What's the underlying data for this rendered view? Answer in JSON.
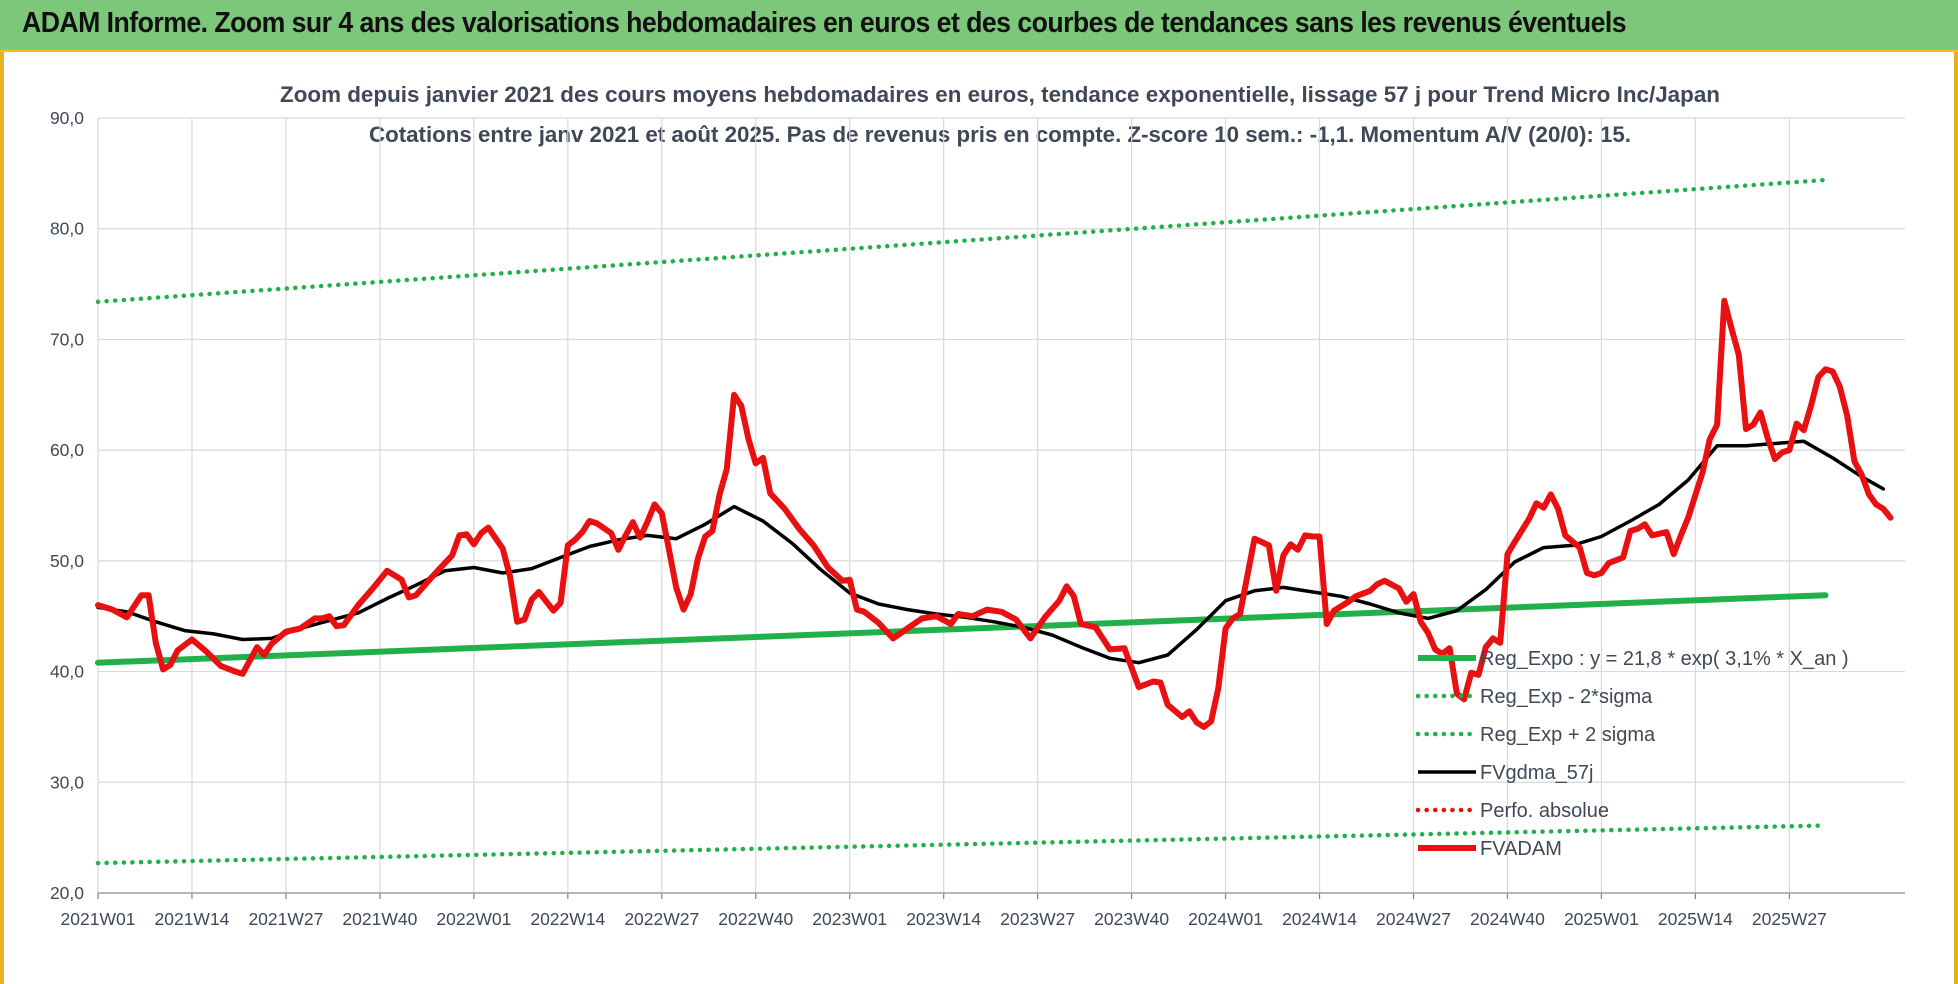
{
  "banner": {
    "title": "ADAM Informe. Zoom sur 4 ans des valorisations hebdomadaires en euros et des courbes de tendances sans les revenus éventuels"
  },
  "colors": {
    "banner_bg": "#7dc77a",
    "green": "#22b04b",
    "black": "#000000",
    "red": "#e81010",
    "grid": "#d9d9d9",
    "text": "#404858"
  },
  "chart_data": {
    "type": "line",
    "title": "Zoom depuis janvier 2021 des cours moyens hebdomadaires en euros, tendance exponentielle, lissage 57 j pour Trend Micro Inc/Japan",
    "subtitle": "Cotations entre janv 2021 et août 2025.  Pas de revenus pris en compte. Z-score 10 sem.: -1,1. Momentum A/V (20/0): 15.",
    "xlabel": "",
    "ylabel": "",
    "ylim": [
      20,
      90
    ],
    "y_ticks": [
      "20,0",
      "30,0",
      "40,0",
      "50,0",
      "60,0",
      "70,0",
      "80,0",
      "90,0"
    ],
    "x_ticks": [
      "2021W01",
      "2021W14",
      "2021W27",
      "2021W40",
      "2022W01",
      "2022W14",
      "2022W27",
      "2022W40",
      "2023W01",
      "2023W14",
      "2023W27",
      "2023W40",
      "2024W01",
      "2024W14",
      "2024W27",
      "2024W40",
      "2025W01",
      "2025W14",
      "2025W27"
    ],
    "x_tick_week_index": [
      0,
      13,
      26,
      39,
      52,
      65,
      78,
      91,
      104,
      117,
      130,
      143,
      156,
      169,
      182,
      195,
      208,
      221,
      234
    ],
    "x_range_weeks": [
      0,
      239
    ],
    "grid": "vertical and horizontal",
    "legend_placement": "lower-right inside plot",
    "series": [
      {
        "name": "Reg_Expo : y = 21,8 * exp( 3,1% *  X_an )",
        "style": "solid-thick",
        "color": "#22b04b",
        "points": [
          [
            0,
            40.8
          ],
          [
            239,
            46.9
          ]
        ]
      },
      {
        "name": "Reg_Exp - 2*sigma",
        "style": "dotted",
        "color": "#22b04b",
        "points": [
          [
            0,
            22.7
          ],
          [
            239,
            26.1
          ]
        ]
      },
      {
        "name": "Reg_Exp + 2 sigma",
        "style": "dotted",
        "color": "#22b04b",
        "points": [
          [
            0,
            73.4
          ],
          [
            239,
            84.4
          ]
        ]
      },
      {
        "name": "FVgdma_57j",
        "style": "solid",
        "color": "#000000",
        "points": [
          [
            0,
            45.8
          ],
          [
            4,
            45.4
          ],
          [
            8,
            44.5
          ],
          [
            12,
            43.7
          ],
          [
            16,
            43.4
          ],
          [
            20,
            42.9
          ],
          [
            24,
            43.0
          ],
          [
            28,
            43.9
          ],
          [
            32,
            44.6
          ],
          [
            36,
            45.3
          ],
          [
            40,
            46.6
          ],
          [
            44,
            47.8
          ],
          [
            48,
            49.1
          ],
          [
            52,
            49.4
          ],
          [
            56,
            48.9
          ],
          [
            60,
            49.3
          ],
          [
            64,
            50.3
          ],
          [
            68,
            51.3
          ],
          [
            72,
            51.9
          ],
          [
            76,
            52.3
          ],
          [
            80,
            52.0
          ],
          [
            84,
            53.3
          ],
          [
            88,
            54.9
          ],
          [
            92,
            53.6
          ],
          [
            96,
            51.6
          ],
          [
            100,
            49.2
          ],
          [
            104,
            47.1
          ],
          [
            108,
            46.1
          ],
          [
            112,
            45.6
          ],
          [
            116,
            45.2
          ],
          [
            120,
            44.9
          ],
          [
            124,
            44.5
          ],
          [
            128,
            44.0
          ],
          [
            132,
            43.3
          ],
          [
            136,
            42.2
          ],
          [
            140,
            41.2
          ],
          [
            144,
            40.8
          ],
          [
            148,
            41.5
          ],
          [
            152,
            43.8
          ],
          [
            156,
            46.4
          ],
          [
            160,
            47.3
          ],
          [
            164,
            47.6
          ],
          [
            168,
            47.2
          ],
          [
            172,
            46.8
          ],
          [
            176,
            46.1
          ],
          [
            180,
            45.3
          ],
          [
            184,
            44.8
          ],
          [
            188,
            45.5
          ],
          [
            192,
            47.4
          ],
          [
            196,
            49.9
          ],
          [
            200,
            51.2
          ],
          [
            204,
            51.4
          ],
          [
            208,
            52.2
          ],
          [
            212,
            53.6
          ],
          [
            216,
            55.1
          ],
          [
            220,
            57.3
          ],
          [
            224,
            60.4
          ],
          [
            228,
            60.4
          ],
          [
            232,
            60.6
          ],
          [
            236,
            60.8
          ],
          [
            240,
            59.3
          ],
          [
            244,
            57.6
          ],
          [
            247,
            56.5
          ]
        ]
      },
      {
        "name": "Perfo. absolue",
        "style": "dotted",
        "color": "#e81010",
        "points": []
      },
      {
        "name": "FVADAM",
        "style": "solid-thick",
        "color": "#e81010",
        "points": [
          [
            0,
            46.0
          ],
          [
            2,
            45.6
          ],
          [
            4,
            44.9
          ],
          [
            6,
            46.9
          ],
          [
            7,
            46.9
          ],
          [
            8,
            42.6
          ],
          [
            9,
            40.2
          ],
          [
            10,
            40.6
          ],
          [
            11,
            41.9
          ],
          [
            13,
            42.9
          ],
          [
            15,
            41.8
          ],
          [
            17,
            40.5
          ],
          [
            19,
            40.0
          ],
          [
            20,
            39.8
          ],
          [
            22,
            42.2
          ],
          [
            23,
            41.5
          ],
          [
            24,
            42.5
          ],
          [
            26,
            43.6
          ],
          [
            28,
            43.9
          ],
          [
            30,
            44.8
          ],
          [
            31,
            44.8
          ],
          [
            32,
            45.0
          ],
          [
            33,
            44.1
          ],
          [
            34,
            44.2
          ],
          [
            36,
            46.0
          ],
          [
            38,
            47.5
          ],
          [
            40,
            49.1
          ],
          [
            42,
            48.3
          ],
          [
            43,
            46.7
          ],
          [
            44,
            46.9
          ],
          [
            46,
            48.4
          ],
          [
            48,
            49.8
          ],
          [
            49,
            50.5
          ],
          [
            50,
            52.3
          ],
          [
            51,
            52.4
          ],
          [
            52,
            51.5
          ],
          [
            53,
            52.5
          ],
          [
            54,
            53.0
          ],
          [
            56,
            51.1
          ],
          [
            57,
            48.6
          ],
          [
            58,
            44.5
          ],
          [
            59,
            44.7
          ],
          [
            60,
            46.5
          ],
          [
            61,
            47.2
          ],
          [
            63,
            45.5
          ],
          [
            64,
            46.2
          ],
          [
            65,
            51.4
          ],
          [
            66,
            51.9
          ],
          [
            67,
            52.6
          ],
          [
            68,
            53.6
          ],
          [
            69,
            53.4
          ],
          [
            71,
            52.5
          ],
          [
            72,
            51.0
          ],
          [
            73,
            52.3
          ],
          [
            74,
            53.5
          ],
          [
            75,
            52.1
          ],
          [
            76,
            53.5
          ],
          [
            77,
            55.1
          ],
          [
            78,
            54.3
          ],
          [
            79,
            51.0
          ],
          [
            80,
            47.6
          ],
          [
            81,
            45.6
          ],
          [
            82,
            47.0
          ],
          [
            83,
            50.2
          ],
          [
            84,
            52.2
          ],
          [
            85,
            52.7
          ],
          [
            86,
            56.0
          ],
          [
            87,
            58.3
          ],
          [
            88,
            65.0
          ],
          [
            89,
            64.0
          ],
          [
            90,
            61.0
          ],
          [
            91,
            58.8
          ],
          [
            92,
            59.3
          ],
          [
            93,
            56.1
          ],
          [
            95,
            54.7
          ],
          [
            97,
            52.9
          ],
          [
            99,
            51.4
          ],
          [
            101,
            49.4
          ],
          [
            103,
            48.2
          ],
          [
            104,
            48.3
          ],
          [
            105,
            45.6
          ],
          [
            106,
            45.4
          ],
          [
            108,
            44.4
          ],
          [
            110,
            43.0
          ],
          [
            112,
            43.9
          ],
          [
            114,
            44.8
          ],
          [
            116,
            45.0
          ],
          [
            118,
            44.3
          ],
          [
            119,
            45.2
          ],
          [
            121,
            45.0
          ],
          [
            123,
            45.6
          ],
          [
            125,
            45.4
          ],
          [
            127,
            44.7
          ],
          [
            129,
            43.0
          ],
          [
            131,
            44.9
          ],
          [
            133,
            46.4
          ],
          [
            134,
            47.7
          ],
          [
            135,
            46.8
          ],
          [
            136,
            44.3
          ],
          [
            138,
            44.0
          ],
          [
            140,
            42.0
          ],
          [
            142,
            42.1
          ],
          [
            144,
            38.6
          ],
          [
            146,
            39.1
          ],
          [
            147,
            39.0
          ],
          [
            148,
            37.0
          ],
          [
            150,
            35.9
          ],
          [
            151,
            36.4
          ],
          [
            152,
            35.4
          ],
          [
            153,
            35.0
          ],
          [
            154,
            35.5
          ],
          [
            155,
            38.5
          ],
          [
            156,
            43.9
          ],
          [
            157,
            44.8
          ],
          [
            158,
            45.2
          ],
          [
            160,
            52.0
          ],
          [
            162,
            51.4
          ],
          [
            163,
            47.3
          ],
          [
            164,
            50.5
          ],
          [
            165,
            51.5
          ],
          [
            166,
            51.0
          ],
          [
            167,
            52.3
          ],
          [
            168,
            52.2
          ],
          [
            169,
            52.2
          ],
          [
            170,
            44.3
          ],
          [
            171,
            45.5
          ],
          [
            173,
            46.3
          ],
          [
            174,
            46.8
          ],
          [
            176,
            47.3
          ],
          [
            177,
            47.9
          ],
          [
            178,
            48.2
          ],
          [
            180,
            47.5
          ],
          [
            181,
            46.3
          ],
          [
            182,
            47.0
          ],
          [
            183,
            44.5
          ],
          [
            184,
            43.5
          ],
          [
            185,
            42.0
          ],
          [
            186,
            41.6
          ],
          [
            187,
            42.1
          ],
          [
            188,
            38.0
          ],
          [
            189,
            37.5
          ],
          [
            190,
            39.9
          ],
          [
            191,
            39.7
          ],
          [
            192,
            42.2
          ],
          [
            193,
            43.0
          ],
          [
            194,
            42.6
          ],
          [
            195,
            50.6
          ],
          [
            196,
            51.7
          ],
          [
            198,
            53.8
          ],
          [
            199,
            55.2
          ],
          [
            200,
            54.8
          ],
          [
            201,
            56.0
          ],
          [
            202,
            54.7
          ],
          [
            203,
            52.3
          ],
          [
            205,
            51.2
          ],
          [
            206,
            48.9
          ],
          [
            207,
            48.7
          ],
          [
            208,
            48.9
          ],
          [
            209,
            49.8
          ],
          [
            211,
            50.3
          ],
          [
            212,
            52.7
          ],
          [
            213,
            52.9
          ],
          [
            214,
            53.3
          ],
          [
            215,
            52.3
          ],
          [
            217,
            52.6
          ],
          [
            218,
            50.6
          ],
          [
            219,
            52.3
          ],
          [
            220,
            53.9
          ],
          [
            222,
            58.0
          ],
          [
            223,
            61.0
          ],
          [
            224,
            62.3
          ],
          [
            225,
            73.5
          ],
          [
            226,
            71.0
          ],
          [
            227,
            68.6
          ],
          [
            228,
            61.9
          ],
          [
            229,
            62.3
          ],
          [
            230,
            63.4
          ],
          [
            231,
            61.1
          ],
          [
            232,
            59.2
          ],
          [
            233,
            59.8
          ],
          [
            234,
            60.0
          ],
          [
            235,
            62.4
          ],
          [
            236,
            61.8
          ],
          [
            237,
            64.0
          ],
          [
            238,
            66.6
          ],
          [
            239,
            67.3
          ],
          [
            240,
            67.1
          ],
          [
            241,
            65.7
          ],
          [
            242,
            63.1
          ],
          [
            243,
            59.0
          ],
          [
            244,
            57.8
          ],
          [
            245,
            56.0
          ],
          [
            246,
            55.1
          ],
          [
            247,
            54.7
          ],
          [
            248,
            53.9
          ]
        ]
      }
    ]
  }
}
